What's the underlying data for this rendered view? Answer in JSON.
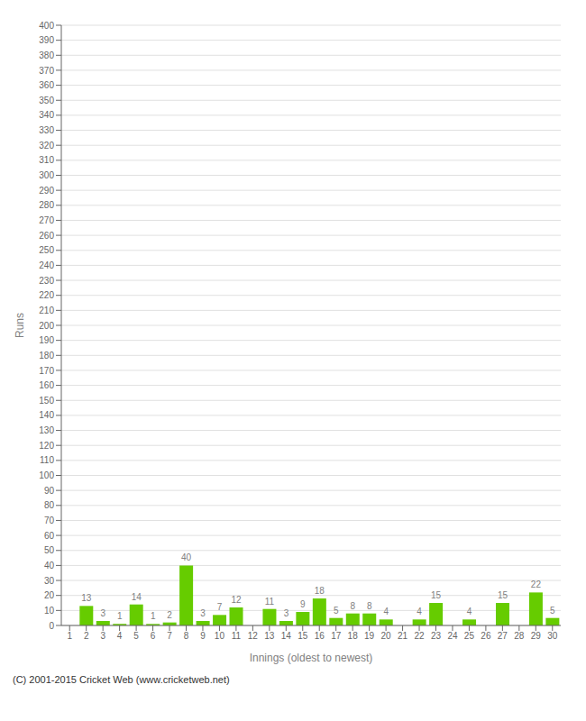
{
  "chart_data": {
    "type": "bar",
    "xlabel": "Innings (oldest to newest)",
    "ylabel": "Runs",
    "annotations": [
      "(C) 2001-2015 Cricket Web (www.cricketweb.net)"
    ],
    "categories": [
      "1",
      "2",
      "3",
      "4",
      "5",
      "6",
      "7",
      "8",
      "9",
      "10",
      "11",
      "12",
      "13",
      "14",
      "15",
      "16",
      "17",
      "18",
      "19",
      "20",
      "21",
      "22",
      "23",
      "24",
      "25",
      "26",
      "27",
      "28",
      "29",
      "30"
    ],
    "values": [
      0,
      13,
      3,
      1,
      14,
      1,
      2,
      40,
      3,
      7,
      12,
      0,
      11,
      3,
      9,
      18,
      5,
      8,
      8,
      4,
      0,
      4,
      15,
      0,
      4,
      0,
      15,
      0,
      22,
      5
    ],
    "color": "#66cc00",
    "ylim": [
      0,
      400
    ],
    "yticks": [
      0,
      10,
      20,
      30,
      40,
      50,
      60,
      70,
      80,
      90,
      100,
      110,
      120,
      130,
      140,
      150,
      160,
      170,
      180,
      190,
      200,
      210,
      220,
      230,
      240,
      250,
      260,
      270,
      280,
      290,
      300,
      310,
      320,
      330,
      340,
      350,
      360,
      370,
      380,
      390,
      400
    ],
    "grid": true,
    "data_labels": true
  }
}
